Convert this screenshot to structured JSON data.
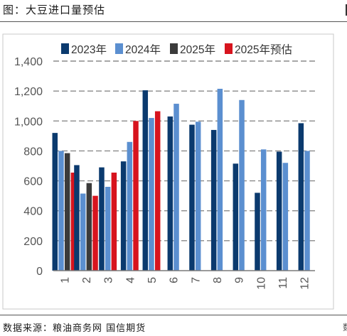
{
  "figure": {
    "title": "图：大豆进口量预估",
    "source": "数据来源：粮油商务网 国信期货",
    "edge_glyph": "数"
  },
  "chart_data": {
    "type": "bar",
    "categories": [
      "1",
      "2",
      "3",
      "4",
      "5",
      "6",
      "7",
      "8",
      "9",
      "10",
      "11",
      "12"
    ],
    "series": [
      {
        "name": "2023年",
        "color": "#0b3a6e",
        "values": [
          920,
          705,
          690,
          730,
          1205,
          1030,
          975,
          940,
          715,
          520,
          795,
          985
        ]
      },
      {
        "name": "2024年",
        "color": "#5b8fd0",
        "values": [
          800,
          515,
          560,
          860,
          1020,
          1115,
          995,
          1215,
          1140,
          810,
          720,
          800
        ]
      },
      {
        "name": "2025年",
        "color": "#3b3b3b",
        "values": [
          785,
          585,
          null,
          null,
          null,
          null,
          null,
          null,
          null,
          null,
          null,
          null
        ]
      },
      {
        "name": "2025年预估",
        "color": "#d7141e",
        "values": [
          655,
          500,
          655,
          1000,
          1065,
          null,
          null,
          null,
          null,
          null,
          null,
          null
        ]
      }
    ],
    "yticks": [
      "0",
      "200",
      "400",
      "600",
      "800",
      "1,000",
      "1,200",
      "1,400"
    ],
    "ylim": [
      0,
      1400
    ],
    "grid": true,
    "legend_position": "top"
  }
}
